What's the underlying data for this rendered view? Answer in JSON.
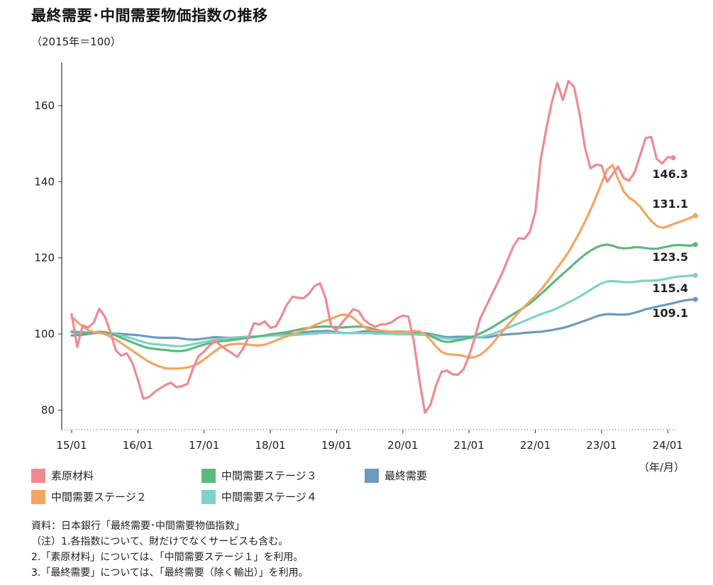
{
  "title": "最終需要･中間需要物価指数の推移",
  "subtitle": "（2015年＝100）",
  "x_unit_label": "（年/月）",
  "legend": [
    {
      "label": "素原材料",
      "color": "#ef8a90"
    },
    {
      "label": "中間需要ステージ３",
      "color": "#5cb97d"
    },
    {
      "label": "最終需要",
      "color": "#6b9bbd"
    },
    {
      "label": "中間需要ステージ２",
      "color": "#f5a462"
    },
    {
      "label": "中間需要ステージ４",
      "color": "#7dd3c8"
    }
  ],
  "notes": [
    "資料：日本銀行「最終需要･中間需要物価指数」",
    "（注）1.各指数について、財だけでなくサービスも含む。",
    "2.「素原材料」については、「中間需要ステージ１」を利用。",
    "3.「最終需要」については、「最終需要（除く輸出）」を利用。"
  ],
  "chart_data": {
    "type": "line",
    "ylim": [
      76,
      168
    ],
    "yticks": [
      80,
      100,
      120,
      140,
      160
    ],
    "xticks": [
      "15/01",
      "16/01",
      "17/01",
      "18/01",
      "19/01",
      "20/01",
      "21/01",
      "22/01",
      "23/01",
      "24/01"
    ],
    "x_start": "2015-01",
    "end_labels": [
      "146.3",
      "131.1",
      "123.5",
      "115.4",
      "109.1"
    ],
    "series": [
      {
        "name": "最終需要",
        "color": "#6b9bbd",
        "end_label": "109.1",
        "values": [
          99.6,
          99.7,
          99.8,
          100.0,
          100.2,
          100.3,
          100.3,
          100.2,
          100.1,
          100.0,
          99.9,
          99.8,
          99.7,
          99.5,
          99.3,
          99.1,
          99.0,
          99.0,
          99.0,
          99.0,
          98.8,
          98.6,
          98.5,
          98.6,
          98.8,
          99.0,
          99.2,
          99.1,
          99.0,
          99.0,
          99.1,
          99.2,
          99.3,
          99.3,
          99.4,
          99.5,
          99.7,
          99.9,
          100.0,
          100.1,
          100.1,
          100.2,
          100.4,
          100.6,
          100.7,
          100.7,
          100.8,
          100.7,
          100.5,
          100.3,
          100.2,
          100.3,
          100.5,
          100.7,
          100.8,
          100.7,
          100.4,
          100.2,
          100.1,
          100.1,
          100.0,
          100.0,
          100.1,
          100.2,
          100.2,
          100.0,
          99.7,
          99.4,
          99.2,
          99.2,
          99.3,
          99.3,
          99.3,
          99.2,
          99.1,
          99.1,
          99.3,
          99.6,
          99.8,
          99.9,
          100.0,
          100.1,
          100.3,
          100.4,
          100.5,
          100.6,
          100.8,
          101.0,
          101.3,
          101.6,
          102.0,
          102.5,
          103.0,
          103.5,
          104.0,
          104.6,
          105.0,
          105.2,
          105.2,
          105.1,
          105.1,
          105.2,
          105.6,
          106.0,
          106.5,
          106.8,
          107.2,
          107.5,
          107.8,
          108.1,
          108.5,
          108.8,
          109.0,
          109.1
        ]
      },
      {
        "name": "中間需要ステージ４",
        "color": "#7dd3c8",
        "end_label": "115.4",
        "values": [
          100.8,
          100.6,
          100.5,
          100.4,
          100.4,
          100.5,
          100.4,
          100.2,
          99.9,
          99.6,
          99.2,
          98.8,
          98.3,
          97.9,
          97.5,
          97.3,
          97.2,
          97.1,
          96.9,
          96.8,
          96.8,
          97.0,
          97.3,
          97.6,
          97.9,
          98.2,
          98.5,
          98.7,
          98.8,
          98.9,
          99.0,
          99.1,
          99.2,
          99.3,
          99.4,
          99.5,
          99.6,
          99.6,
          99.6,
          99.6,
          99.7,
          99.8,
          99.9,
          100.0,
          100.1,
          100.2,
          100.3,
          100.3,
          100.3,
          100.2,
          100.2,
          100.2,
          100.2,
          100.2,
          100.2,
          100.1,
          100.1,
          100.0,
          100.0,
          99.9,
          99.9,
          99.9,
          99.9,
          99.8,
          99.8,
          99.6,
          99.3,
          99.0,
          98.8,
          98.7,
          98.7,
          98.8,
          98.9,
          99.0,
          99.2,
          99.5,
          99.9,
          100.4,
          101.0,
          101.6,
          102.2,
          102.8,
          103.4,
          104.0,
          104.6,
          105.2,
          105.7,
          106.2,
          106.8,
          107.5,
          108.3,
          109.0,
          109.8,
          110.7,
          111.6,
          112.5,
          113.3,
          113.8,
          113.9,
          113.8,
          113.6,
          113.6,
          113.7,
          113.9,
          114.0,
          114.0,
          114.1,
          114.3,
          114.6,
          114.9,
          115.1,
          115.2,
          115.3,
          115.4
        ]
      },
      {
        "name": "中間需要ステージ３",
        "color": "#5cb97d",
        "end_label": "123.5",
        "values": [
          100.5,
          100.4,
          100.3,
          100.3,
          100.4,
          100.6,
          100.5,
          100.1,
          99.6,
          99.0,
          98.4,
          97.8,
          97.2,
          96.7,
          96.3,
          96.1,
          95.9,
          95.8,
          95.6,
          95.5,
          95.5,
          95.8,
          96.3,
          96.8,
          97.2,
          97.6,
          97.9,
          98.1,
          98.2,
          98.4,
          98.6,
          98.8,
          99.0,
          99.2,
          99.4,
          99.6,
          99.9,
          100.1,
          100.3,
          100.5,
          100.8,
          101.1,
          101.4,
          101.6,
          101.8,
          101.9,
          102.0,
          101.9,
          101.8,
          101.7,
          101.8,
          101.9,
          102.0,
          101.9,
          101.6,
          101.2,
          100.9,
          100.7,
          100.6,
          100.6,
          100.6,
          100.6,
          100.6,
          100.5,
          100.1,
          99.5,
          98.8,
          98.2,
          97.9,
          98.0,
          98.3,
          98.6,
          99.0,
          99.5,
          100.1,
          100.8,
          101.6,
          102.5,
          103.4,
          104.3,
          105.2,
          106.1,
          107.0,
          108.0,
          109.2,
          110.5,
          111.8,
          113.2,
          114.5,
          115.8,
          117.1,
          118.4,
          119.7,
          120.9,
          121.9,
          122.7,
          123.3,
          123.5,
          123.2,
          122.7,
          122.5,
          122.6,
          122.8,
          122.8,
          122.6,
          122.4,
          122.4,
          122.7,
          123.0,
          123.3,
          123.4,
          123.3,
          123.2,
          123.5
        ]
      },
      {
        "name": "中間需要ステージ２",
        "color": "#f5a462",
        "end_label": "131.1",
        "values": [
          104.5,
          103.2,
          102.0,
          101.0,
          100.5,
          100.3,
          100.0,
          99.3,
          98.5,
          97.6,
          96.6,
          95.6,
          94.6,
          93.6,
          92.7,
          92.0,
          91.4,
          91.0,
          90.9,
          90.9,
          91.0,
          91.2,
          91.6,
          92.3,
          93.3,
          94.4,
          95.6,
          96.5,
          97.0,
          97.3,
          97.4,
          97.4,
          97.2,
          97.0,
          97.0,
          97.2,
          97.7,
          98.3,
          98.9,
          99.4,
          99.9,
          100.4,
          101.0,
          101.6,
          102.3,
          102.9,
          103.5,
          104.0,
          104.6,
          105.1,
          105.0,
          104.3,
          103.0,
          101.8,
          101.1,
          100.9,
          100.9,
          100.7,
          100.5,
          100.4,
          100.4,
          100.6,
          100.8,
          100.7,
          99.9,
          98.5,
          96.7,
          95.3,
          94.7,
          94.6,
          94.5,
          94.2,
          93.8,
          93.9,
          94.5,
          95.6,
          97.1,
          98.8,
          100.6,
          102.3,
          104.0,
          105.7,
          107.2,
          108.6,
          110.0,
          111.6,
          113.4,
          115.4,
          117.4,
          119.4,
          121.5,
          124.0,
          126.7,
          129.5,
          132.6,
          136.0,
          139.6,
          143.2,
          144.4,
          140.8,
          137.5,
          135.8,
          134.9,
          133.5,
          131.5,
          129.7,
          128.4,
          127.9,
          128.3,
          128.9,
          129.4,
          129.9,
          130.5,
          131.1
        ]
      },
      {
        "name": "素原材料",
        "color": "#ef8a90",
        "end_label": "146.3",
        "values": [
          105.2,
          96.6,
          102.3,
          101.7,
          103.0,
          106.6,
          104.6,
          100.6,
          95.7,
          94.3,
          94.9,
          92.4,
          87.9,
          83.0,
          83.4,
          84.7,
          85.7,
          86.6,
          87.2,
          86.0,
          86.3,
          86.9,
          91.0,
          94.2,
          95.4,
          97.0,
          98.2,
          97.0,
          95.9,
          95.0,
          94.0,
          96.0,
          99.0,
          102.8,
          102.5,
          103.3,
          101.6,
          102.0,
          104.6,
          107.7,
          109.8,
          109.5,
          109.4,
          110.6,
          112.6,
          113.3,
          109.4,
          102.1,
          101.0,
          103.0,
          104.7,
          106.5,
          106.0,
          103.7,
          102.6,
          101.9,
          102.5,
          102.6,
          103.1,
          104.2,
          104.8,
          104.6,
          98.0,
          88.0,
          79.3,
          81.4,
          86.4,
          90.0,
          90.4,
          89.4,
          89.3,
          90.7,
          94.3,
          98.8,
          104.0,
          107.0,
          110.0,
          113.0,
          116.0,
          119.5,
          123.0,
          125.2,
          125.0,
          126.8,
          132.0,
          146.0,
          154.0,
          161.0,
          166.0,
          161.5,
          166.5,
          165.0,
          158.0,
          149.0,
          143.5,
          144.5,
          144.3,
          140.0,
          142.0,
          144.0,
          141.0,
          140.3,
          142.5,
          147.0,
          151.5,
          151.8,
          146.0,
          144.8,
          146.5,
          146.3
        ]
      }
    ]
  }
}
